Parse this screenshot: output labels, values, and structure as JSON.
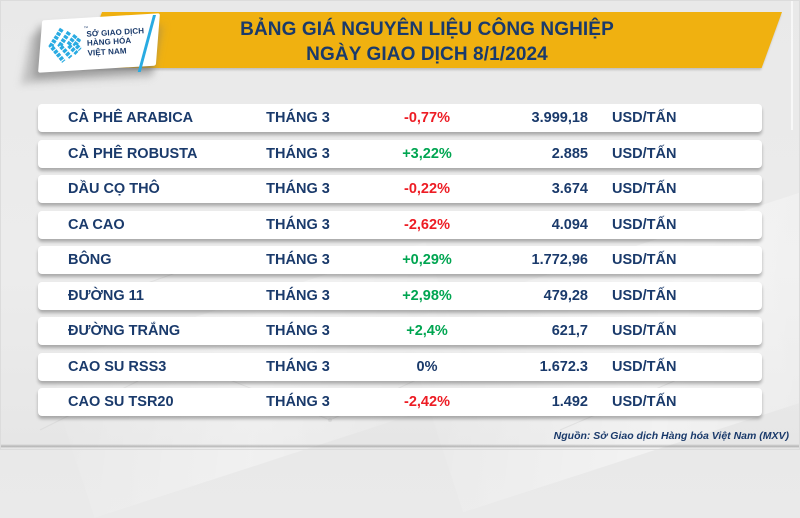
{
  "colors": {
    "banner": "#f0b110",
    "navy": "#1a3a6b",
    "red": "#ed1c24",
    "green": "#00a551",
    "cyan": "#29abe2"
  },
  "logo": {
    "line1": "SỞ GIAO DỊCH",
    "line2": "HÀNG HÓA",
    "line3": "VIỆT NAM",
    "tm": "™"
  },
  "header": {
    "title_line1": "BẢNG GIÁ NGUYÊN LIỆU CÔNG NGHIỆP",
    "title_line2": "NGÀY GIAO DỊCH 8/1/2024"
  },
  "table": {
    "rows": [
      {
        "name": "CÀ PHÊ ARABICA",
        "month": "THÁNG 3",
        "pct": "-0,77%",
        "pct_sign": "neg",
        "price": "3.999,18",
        "unit": "USD/TẤN"
      },
      {
        "name": "CÀ PHÊ ROBUSTA",
        "month": "THÁNG 3",
        "pct": "+3,22%",
        "pct_sign": "pos",
        "price": "2.885",
        "unit": "USD/TẤN"
      },
      {
        "name": "DẦU CỌ THÔ",
        "month": "THÁNG 3",
        "pct": "-0,22%",
        "pct_sign": "neg",
        "price": "3.674",
        "unit": "USD/TẤN"
      },
      {
        "name": "CA CAO",
        "month": "THÁNG 3",
        "pct": "-2,62%",
        "pct_sign": "neg",
        "price": "4.094",
        "unit": "USD/TẤN"
      },
      {
        "name": "BÔNG",
        "month": "THÁNG 3",
        "pct": "+0,29%",
        "pct_sign": "pos",
        "price": "1.772,96",
        "unit": "USD/TẤN"
      },
      {
        "name": "ĐƯỜNG 11",
        "month": "THÁNG 3",
        "pct": "+2,98%",
        "pct_sign": "pos",
        "price": "479,28",
        "unit": "USD/TẤN"
      },
      {
        "name": "ĐƯỜNG TRẮNG",
        "month": "THÁNG 3",
        "pct": "+2,4%",
        "pct_sign": "pos",
        "price": "621,7",
        "unit": "USD/TẤN"
      },
      {
        "name": "CAO SU RSS3",
        "month": "THÁNG 3",
        "pct": "0%",
        "pct_sign": "zero",
        "price": "1.672.3",
        "unit": "USD/TẤN"
      },
      {
        "name": "CAO SU TSR20",
        "month": "THÁNG 3",
        "pct": "-2,42%",
        "pct_sign": "neg",
        "price": "1.492",
        "unit": "USD/TẤN"
      }
    ]
  },
  "footer": {
    "source": "Nguồn: Sở Giao dịch Hàng hóa Việt Nam (MXV)"
  }
}
